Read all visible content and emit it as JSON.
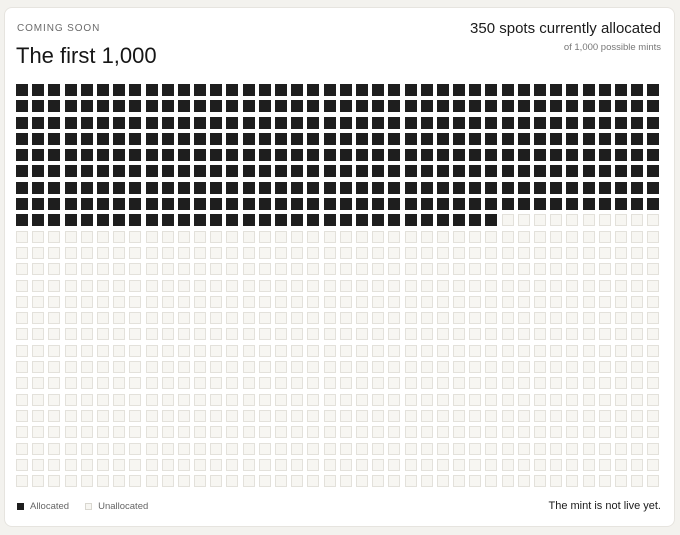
{
  "header": {
    "eyebrow": "COMING SOON",
    "title": "The first 1,000",
    "allocated_text": "350 spots currently allocated",
    "possible_text": "of 1,000 possible mints"
  },
  "grid": {
    "total": 1000,
    "allocated": 350
  },
  "legend": {
    "allocated_label": "Allocated",
    "unallocated_label": "Unallocated"
  },
  "footer": {
    "status": "The mint is not live yet."
  },
  "colors": {
    "allocated": "#1e1e1e",
    "unallocated": "#f7f6f2",
    "background": "#f3f2ee"
  }
}
